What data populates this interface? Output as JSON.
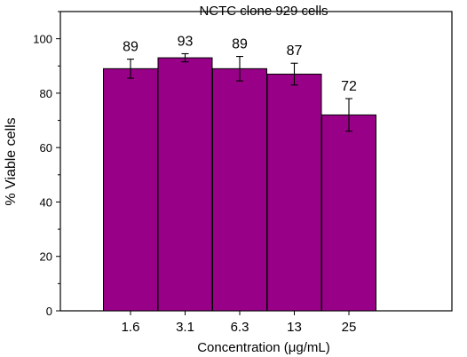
{
  "chart_data": {
    "type": "bar",
    "title": "NCTC clone 929 cells",
    "xlabel": "Concentration (μg/mL)",
    "ylabel": "% Viable cells",
    "categories": [
      "1.6",
      "3.1",
      "6.3",
      "13",
      "25"
    ],
    "values": [
      89,
      93,
      89,
      87,
      72
    ],
    "error": [
      3.5,
      1.5,
      4.5,
      4,
      6
    ],
    "data_labels": [
      "89",
      "93",
      "89",
      "87",
      "72"
    ],
    "ylim": [
      0,
      110
    ],
    "yticks": [
      0,
      20,
      40,
      60,
      80,
      100
    ],
    "grid": false,
    "legend": "none",
    "bar_color": "#990088"
  }
}
